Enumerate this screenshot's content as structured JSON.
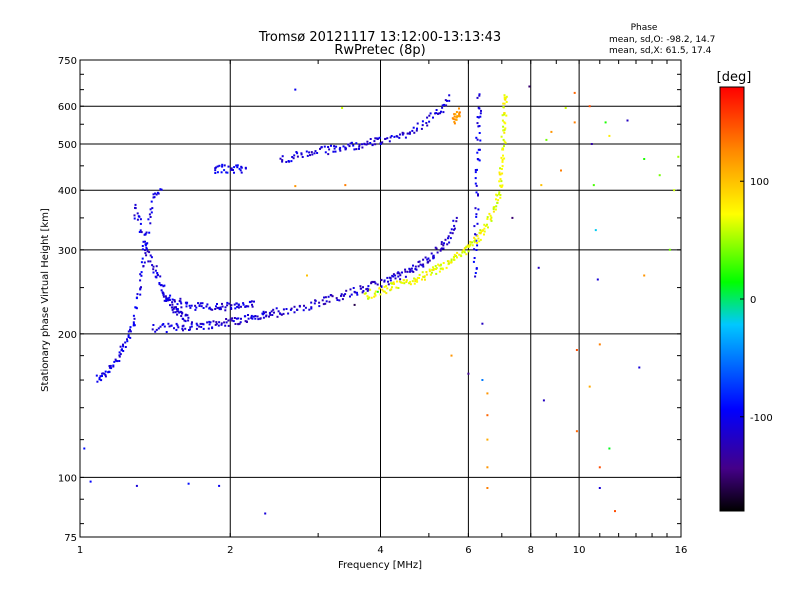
{
  "chart_data": {
    "type": "scatter",
    "title": "Tromsø 20121117 13:12:00-13:13:43",
    "subtitle": "RwPretec (8p)",
    "xlabel": "Frequency [MHz]",
    "ylabel": "Stationary phase Virtual Height [km]",
    "x_scale": "log",
    "y_scale": "log",
    "xlim": [
      1,
      16
    ],
    "ylim": [
      75,
      750
    ],
    "x_ticks": [
      1,
      2,
      4,
      6,
      8,
      10,
      16
    ],
    "x_tick_labels": [
      "1",
      "2",
      "4",
      "6",
      "8",
      "10",
      "16"
    ],
    "y_ticks": [
      75,
      100,
      200,
      300,
      400,
      500,
      600,
      750
    ],
    "y_tick_labels": [
      "75",
      "100",
      "200",
      "300",
      "400",
      "500",
      "600",
      "750"
    ],
    "grid": true,
    "stats": {
      "heading": "Phase",
      "line_o": "mean, sd,O: -98.2, 14.7",
      "line_x": "mean, sd,X: 61.5, 17.4"
    },
    "colorbar": {
      "label": "[deg]",
      "range": [
        -180,
        180
      ],
      "ticks": [
        100,
        0,
        -100
      ],
      "tick_labels": [
        "100",
        "0",
        "-100"
      ]
    },
    "series": [
      {
        "traces": [
          {
            "f": [
              1.08,
              1.12,
              1.16,
              1.2,
              1.24,
              1.28,
              1.31,
              1.33,
              1.36,
              1.4,
              1.45
            ],
            "h": [
              160,
              165,
              172,
              180,
              192,
              210,
              240,
              280,
              320,
              380,
              405
            ],
            "phase": -105
          },
          {
            "f": [
              1.28,
              1.32,
              1.36,
              1.4,
              1.44,
              1.48,
              1.52,
              1.56,
              1.6,
              1.65
            ],
            "h": [
              370,
              340,
              300,
              280,
              260,
              240,
              230,
              224,
              218,
              215
            ],
            "phase": -110
          },
          {
            "f": [
              1.4,
              1.5,
              1.6,
              1.7,
              1.8,
              1.9,
              2.0,
              2.1,
              2.2,
              2.3,
              2.4,
              2.5
            ],
            "h": [
              205,
              206,
              207,
              208,
              209,
              210,
              212,
              214,
              216,
              218,
              220,
              222
            ],
            "phase": -112
          },
          {
            "f": [
              1.45,
              1.55,
              1.65,
              1.75,
              1.85,
              1.95,
              2.05,
              2.15,
              2.25
            ],
            "h": [
              240,
              234,
              230,
              228,
              227,
              228,
              228,
              229,
              230
            ],
            "phase": -108
          },
          {
            "f": [
              2.5,
              2.7,
              2.9,
              3.1,
              3.3,
              3.5,
              3.7,
              3.9,
              4.1,
              4.3,
              4.5,
              4.7,
              4.9,
              5.1,
              5.3,
              5.5,
              5.7
            ],
            "h": [
              222,
              226,
              230,
              235,
              240,
              244,
              248,
              253,
              258,
              263,
              268,
              275,
              283,
              292,
              305,
              320,
              350
            ],
            "phase": -115
          },
          {
            "f": [
              1.85,
              1.95,
              2.05,
              2.15
            ],
            "h": [
              440,
              445,
              443,
              442
            ],
            "phase": -100
          },
          {
            "f": [
              2.5,
              2.7,
              2.9,
              3.1,
              3.3,
              3.5,
              3.7,
              3.9,
              4.1,
              4.4,
              4.7,
              5.0,
              5.3,
              5.5
            ],
            "h": [
              465,
              470,
              480,
              485,
              490,
              495,
              500,
              505,
              510,
              520,
              540,
              560,
              590,
              630
            ],
            "phase": -110
          },
          {
            "f": [
              6.2,
              6.22,
              6.25,
              6.27,
              6.3,
              6.32
            ],
            "h": [
              260,
              320,
              400,
              480,
              560,
              640
            ],
            "phase": -105
          }
        ]
      },
      {
        "traces": [
          {
            "f": [
              3.7,
              3.9,
              4.1,
              4.3,
              4.5,
              4.7,
              4.9,
              5.1,
              5.3,
              5.5,
              5.7,
              5.9,
              6.1,
              6.3,
              6.5,
              6.7,
              6.85,
              6.95,
              7.0,
              7.05,
              7.08,
              7.1,
              7.12
            ],
            "h": [
              240,
              244,
              248,
              252,
              256,
              260,
              265,
              270,
              276,
              282,
              290,
              298,
              308,
              320,
              335,
              355,
              380,
              410,
              450,
              500,
              550,
              600,
              630
            ],
            "phase": 70
          },
          {
            "f": [
              5.6,
              5.7,
              5.75
            ],
            "h": [
              560,
              575,
              585
            ],
            "phase": 120
          }
        ]
      }
    ],
    "isolated_points": [
      {
        "f": 1.02,
        "h": 115,
        "phase": -90
      },
      {
        "f": 1.05,
        "h": 98,
        "phase": -95
      },
      {
        "f": 1.3,
        "h": 96,
        "phase": -110
      },
      {
        "f": 1.65,
        "h": 97,
        "phase": -90
      },
      {
        "f": 1.9,
        "h": 96,
        "phase": -100
      },
      {
        "f": 2.35,
        "h": 84,
        "phase": -110
      },
      {
        "f": 2.7,
        "h": 650,
        "phase": -100
      },
      {
        "f": 2.7,
        "h": 408,
        "phase": 120
      },
      {
        "f": 2.85,
        "h": 265,
        "phase": 100
      },
      {
        "f": 3.35,
        "h": 595,
        "phase": 60
      },
      {
        "f": 3.4,
        "h": 410,
        "phase": 130
      },
      {
        "f": 3.55,
        "h": 230,
        "phase": -160
      },
      {
        "f": 3.95,
        "h": 245,
        "phase": 20
      },
      {
        "f": 5.55,
        "h": 180,
        "phase": 120
      },
      {
        "f": 6.0,
        "h": 165,
        "phase": -140
      },
      {
        "f": 6.4,
        "h": 160,
        "phase": -50
      },
      {
        "f": 6.55,
        "h": 95,
        "phase": 130
      },
      {
        "f": 6.55,
        "h": 105,
        "phase": 120
      },
      {
        "f": 6.55,
        "h": 120,
        "phase": 110
      },
      {
        "f": 6.55,
        "h": 135,
        "phase": 140
      },
      {
        "f": 6.55,
        "h": 150,
        "phase": 120
      },
      {
        "f": 6.4,
        "h": 210,
        "phase": -120
      },
      {
        "f": 7.35,
        "h": 350,
        "phase": -150
      },
      {
        "f": 7.95,
        "h": 660,
        "phase": -150
      },
      {
        "f": 8.3,
        "h": 275,
        "phase": -120
      },
      {
        "f": 8.4,
        "h": 410,
        "phase": 100
      },
      {
        "f": 8.5,
        "h": 145,
        "phase": -120
      },
      {
        "f": 8.6,
        "h": 510,
        "phase": 40
      },
      {
        "f": 8.8,
        "h": 530,
        "phase": 120
      },
      {
        "f": 9.2,
        "h": 440,
        "phase": 130
      },
      {
        "f": 9.4,
        "h": 595,
        "phase": 60
      },
      {
        "f": 9.8,
        "h": 640,
        "phase": 140
      },
      {
        "f": 9.8,
        "h": 555,
        "phase": 130
      },
      {
        "f": 9.9,
        "h": 185,
        "phase": 150
      },
      {
        "f": 9.9,
        "h": 125,
        "phase": 140
      },
      {
        "f": 10.5,
        "h": 600,
        "phase": 150
      },
      {
        "f": 10.6,
        "h": 500,
        "phase": -130
      },
      {
        "f": 10.7,
        "h": 410,
        "phase": 30
      },
      {
        "f": 10.8,
        "h": 330,
        "phase": -20
      },
      {
        "f": 10.9,
        "h": 260,
        "phase": -110
      },
      {
        "f": 11.0,
        "h": 190,
        "phase": 130
      },
      {
        "f": 10.5,
        "h": 155,
        "phase": 110
      },
      {
        "f": 11.5,
        "h": 520,
        "phase": 80
      },
      {
        "f": 11.0,
        "h": 105,
        "phase": 150
      },
      {
        "f": 11.0,
        "h": 95,
        "phase": -110
      },
      {
        "f": 11.5,
        "h": 115,
        "phase": 10
      },
      {
        "f": 11.8,
        "h": 85,
        "phase": 150
      },
      {
        "f": 11.3,
        "h": 555,
        "phase": 20
      },
      {
        "f": 12.5,
        "h": 560,
        "phase": -120
      },
      {
        "f": 13.2,
        "h": 170,
        "phase": -110
      },
      {
        "f": 13.5,
        "h": 465,
        "phase": 20
      },
      {
        "f": 13.5,
        "h": 265,
        "phase": 120
      },
      {
        "f": 14.5,
        "h": 430,
        "phase": 40
      },
      {
        "f": 15.2,
        "h": 300,
        "phase": 40
      },
      {
        "f": 15.5,
        "h": 400,
        "phase": 60
      },
      {
        "f": 15.8,
        "h": 470,
        "phase": 50
      }
    ]
  }
}
